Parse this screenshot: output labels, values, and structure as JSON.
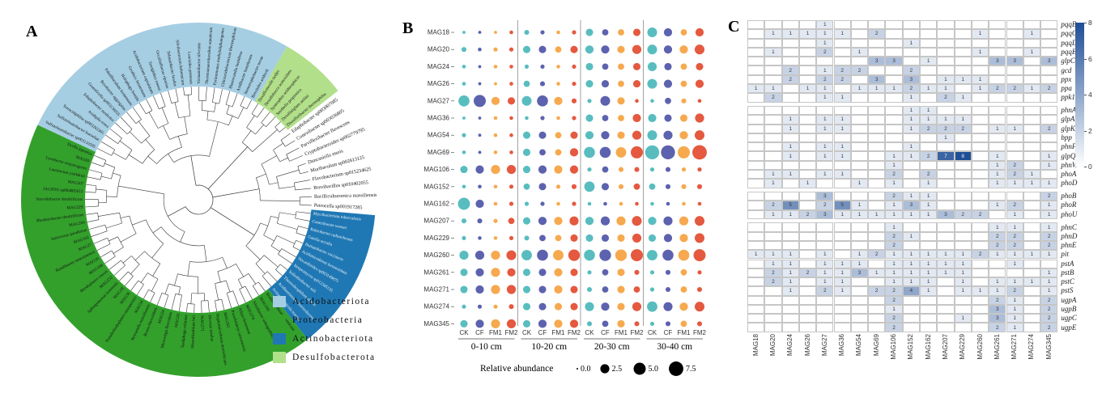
{
  "panel_a": {
    "label": "A",
    "legend": [
      {
        "name": "Acidobacteriota",
        "color": "#a6cee3"
      },
      {
        "name": "Proteobacteria",
        "color": "#33a02c"
      },
      {
        "name": "Actinobacteriota",
        "color": "#1f78b4"
      },
      {
        "name": "Desulfobacterota",
        "color": "#b2df8a"
      }
    ],
    "sectors": [
      {
        "name": "Acidobacteriota",
        "color": "#a6cee3",
        "start": -65,
        "end": 30,
        "label_color": "#111111",
        "tips": [
          "Sulfotelmatobacter sp003133595",
          "Sulfotelmatobacter kueseliae",
          "Terracidiphilus sp003265365",
          "Acidipila rosea",
          "Edaphobacter modestus",
          "Granulicella sp003136055",
          "Bryobacter aggregatus",
          "Paludibaculum fermentans",
          "Holophaga foetida",
          "Geothrix fermentans",
          "Acidobacterium capsulatum",
          "Terriglobus roseus",
          "Occallatibacter riparius",
          "Telmatobacter bradus",
          "Silvibacterium bohemicum",
          "Luteitalea pratensis",
          "Vicinamibacter silvestris",
          "Thermoanaerobaculum aquaticum",
          "Pyrinomonas methylaliphatogenes",
          "Chloracidobacterium thermophilum",
          "Blastocatella fastidiosa",
          "Aridibacter famidurans",
          "Stenotrophobacter terrae",
          "Brevitalea aridisoli"
        ]
      },
      {
        "name": "Desulfobacterota",
        "color": "#b2df8a",
        "start": 30,
        "end": 52,
        "label_color": "#111111",
        "tips": [
          "Desulfomonile tiedjei",
          "Desulfobacca acetoxidans",
          "Syntrophus aciditrophicus",
          "Smithella propionica",
          "Desulfatiglans anilini",
          "Dissulfuribacter thermophilus"
        ]
      },
      {
        "name": "",
        "color": "none",
        "start": 52,
        "end": 95,
        "label_color": "#111111",
        "tips": [
          "Edaphobacter sp003007085",
          "Conexibacter sp003036805",
          "Parviflexibacter flavescens",
          "Cryptobacteroides sp002779795",
          "Duncaniella muris",
          "Muribaculum sp002613125",
          "Flavobacterium sp015234625",
          "Brevibacillus sp010402055",
          "Bacilliculturomica massiliensis",
          "Petrocella sp001917285"
        ]
      },
      {
        "name": "Actinobacteriota",
        "color": "#1f78b4",
        "start": 95,
        "end": 142,
        "label_color": "#f2f6fa",
        "tips": [
          "Mycobacterium tuberculosis",
          "Conexibacter woesei",
          "Rubrobacter radiotolerans",
          "Gaiella occulta",
          "Ilumatobacter coccineus",
          "Acidimicrobium ferrooxidans",
          "Nocardioides sp003149875",
          "Streptomyces sp012345135",
          "Solirubrobacter soli",
          "Thermoleophilum album",
          "Aciditerrimonas ferrireducens",
          "Actinomarinicola tropica"
        ]
      },
      {
        "name": "Proteobacteria",
        "color": "#33a02c",
        "start": 142,
        "end": 295,
        "label_color": "#111111",
        "tips": [
          "Bradyrhizobium japonicum",
          "MAG345",
          "Nitrobacter winogradskyi",
          "MAG274",
          "Afipia broomeae",
          "Pseudolabrys taiwanensis",
          "MAG261",
          "Hyphomicrobium denitrificans",
          "Devosia insulae",
          "MAG271",
          "Mesorhizobium loti",
          "Tardiphaga robiniae",
          "MAG26",
          "Microvirga flocculans",
          "MAG24",
          "Bosea thiooxidans",
          "Reyranella massiliensis",
          "MAG54",
          "Pseudorhodoplanes sinuspersici",
          "MAG36",
          "MAG18",
          "Sphingomonas koreensis",
          "MAG152",
          "Rhodoplanes roseus",
          "MAG106",
          "MAG20",
          "Ramlibacter tataouinensis",
          "MAG27",
          "MAG162",
          "Variovorax paradoxus",
          "MAG260",
          "Rhodanobacter denitrificans",
          "MAG229",
          "Steroidobacter denitrificans",
          "JACPF01 sp004805615",
          "MAG207",
          "Luteimonas yindakuii",
          "Lysobacter enzymogenes",
          "MAG69",
          "Dyella japonica"
        ]
      }
    ]
  },
  "panel_b": {
    "label": "B"
  },
  "panel_c": {
    "label": "C"
  },
  "chart_data": [
    {
      "type": "scatter",
      "title": "",
      "rows": [
        "MAG18",
        "MAG20",
        "MAG24",
        "MAG26",
        "MAG27",
        "MAG36",
        "MAG54",
        "MAG69",
        "MAG106",
        "MAG152",
        "MAG162",
        "MAG207",
        "MAG229",
        "MAG260",
        "MAG261",
        "MAG271",
        "MAG274",
        "MAG345"
      ],
      "facets": [
        "0-10 cm",
        "10-20 cm",
        "20-30 cm",
        "30-40 cm"
      ],
      "x_categories": [
        "CK",
        "CF",
        "FM1",
        "FM2"
      ],
      "series_colors": {
        "CK": "#59bdbf",
        "CF": "#5d62ae",
        "FM1": "#f6a94e",
        "FM2": "#e4593f"
      },
      "size_legend": {
        "label": "Relative abundance",
        "values": [
          "0.0",
          "2.5",
          "5.0",
          "7.5"
        ]
      },
      "ylim": [
        0,
        7.5
      ],
      "values": {
        "MAG18": [
          0.1,
          0.1,
          0.1,
          0.2,
          0.5,
          0.3,
          0.2,
          0.3,
          1.5,
          1.0,
          1.0,
          1.5,
          3.0,
          2.0,
          1.0,
          2.0
        ],
        "MAG20": [
          0.5,
          0.2,
          0.3,
          0.3,
          1.5,
          1.5,
          1.0,
          1.5,
          2.0,
          2.0,
          1.5,
          2.5,
          3.0,
          2.0,
          2.0,
          3.0
        ],
        "MAG24": [
          0.2,
          0.1,
          0.2,
          0.2,
          0.3,
          0.3,
          0.2,
          0.3,
          1.5,
          1.0,
          1.0,
          1.5,
          2.5,
          1.5,
          1.0,
          1.5
        ],
        "MAG26": [
          0.2,
          0.1,
          0.1,
          0.2,
          1.0,
          0.5,
          0.2,
          0.3,
          1.5,
          1.5,
          1.0,
          1.5,
          3.0,
          2.0,
          1.0,
          2.0
        ],
        "MAG27": [
          4.0,
          5.0,
          2.0,
          1.5,
          3.0,
          4.0,
          2.0,
          0.5,
          0.3,
          3.0,
          1.5,
          0.2,
          0.2,
          1.0,
          0.5,
          0.2
        ],
        "MAG36": [
          0.1,
          0.1,
          0.2,
          0.2,
          0.2,
          0.3,
          0.2,
          0.3,
          1.5,
          1.0,
          1.0,
          2.0,
          2.0,
          1.5,
          1.5,
          2.5
        ],
        "MAG54": [
          0.3,
          0.1,
          0.2,
          0.2,
          1.5,
          1.5,
          1.0,
          1.5,
          2.0,
          2.0,
          1.5,
          2.5,
          3.0,
          2.5,
          2.0,
          3.0
        ],
        "MAG69": [
          0.2,
          0.1,
          0.2,
          0.2,
          1.5,
          1.0,
          1.0,
          2.0,
          4.0,
          4.0,
          3.5,
          5.0,
          7.0,
          7.0,
          5.0,
          7.5
        ],
        "MAG106": [
          1.5,
          2.0,
          2.5,
          2.5,
          1.5,
          2.0,
          2.0,
          2.0,
          0.3,
          1.0,
          0.5,
          0.5,
          0.3,
          0.5,
          0.3,
          0.3
        ],
        "MAG152": [
          0.2,
          0.2,
          0.2,
          0.3,
          1.0,
          1.5,
          0.3,
          0.5,
          3.5,
          1.5,
          0.5,
          1.0,
          1.0,
          0.5,
          0.5,
          0.5
        ],
        "MAG162": [
          5.0,
          2.0,
          0.2,
          0.3,
          0.3,
          0.3,
          0.2,
          0.3,
          0.2,
          0.2,
          0.2,
          0.2,
          0.2,
          0.2,
          0.2,
          0.2
        ],
        "MAG207": [
          0.5,
          0.5,
          0.3,
          1.0,
          1.5,
          2.0,
          2.0,
          2.5,
          2.0,
          2.5,
          2.5,
          3.0,
          2.0,
          2.5,
          2.5,
          3.0
        ],
        "MAG229": [
          0.3,
          0.2,
          0.2,
          0.3,
          0.5,
          1.0,
          1.0,
          1.5,
          1.5,
          1.5,
          1.5,
          2.5,
          1.5,
          2.0,
          2.0,
          3.0
        ],
        "MAG260": [
          2.5,
          2.5,
          2.5,
          3.0,
          3.5,
          4.0,
          3.5,
          4.5,
          4.0,
          4.5,
          4.5,
          5.0,
          3.5,
          4.0,
          4.0,
          5.0
        ],
        "MAG261": [
          1.5,
          2.0,
          2.5,
          2.0,
          1.5,
          1.5,
          2.0,
          1.5,
          0.3,
          1.0,
          1.5,
          0.5,
          0.3,
          0.5,
          1.0,
          0.3
        ],
        "MAG271": [
          1.5,
          2.0,
          2.5,
          2.5,
          1.5,
          1.5,
          2.0,
          1.5,
          0.5,
          1.0,
          1.5,
          1.0,
          0.3,
          0.5,
          1.0,
          0.5
        ],
        "MAG274": [
          0.3,
          0.3,
          0.3,
          0.5,
          1.5,
          1.5,
          1.5,
          1.5,
          2.5,
          2.0,
          1.5,
          2.5,
          3.5,
          2.5,
          2.0,
          3.0
        ],
        "MAG345": [
          1.5,
          2.0,
          2.5,
          2.5,
          1.5,
          2.0,
          2.0,
          2.0,
          0.5,
          1.0,
          1.5,
          0.5,
          0.3,
          0.5,
          1.0,
          0.5
        ]
      }
    },
    {
      "type": "heatmap",
      "columns": [
        "MAG18",
        "MAG20",
        "MAG24",
        "MAG26",
        "MAG27",
        "MAG36",
        "MAG54",
        "MAG69",
        "MAG106",
        "MAG152",
        "MAG162",
        "MAG207",
        "MAG229",
        "MAG260",
        "MAG261",
        "MAG271",
        "MAG274",
        "MAG345"
      ],
      "row_groups": [
        [
          "pqqB",
          "pqqC",
          "pqqD",
          "pqqE",
          "glpC",
          "gcd",
          "ppx",
          "ppa",
          "ppk1"
        ],
        [
          "phnA",
          "glpA",
          "glpK",
          "bpp",
          "phnP",
          "glpQ",
          "phnW",
          "phoA",
          "phoD"
        ],
        [
          "phoB",
          "phoR",
          "phoU"
        ],
        [
          "phnC",
          "phnD",
          "phnE",
          "pit",
          "pstA",
          "pstB",
          "pstC",
          "pstS",
          "ugpA",
          "ugpB",
          "ugpC",
          "ugpE"
        ]
      ],
      "colorbar": {
        "min": 0,
        "max": 8,
        "ticks": [
          8,
          6,
          4,
          2,
          0
        ],
        "color_high": "#1f4e96",
        "color_low": "#ffffff"
      },
      "values": {
        "pqqB": {
          "MAG27": 1
        },
        "pqqC": {
          "MAG20": 1,
          "MAG24": 1,
          "MAG26": 1,
          "MAG27": 1,
          "MAG36": 1,
          "MAG69": 2,
          "MAG260": 1,
          "MAG274": 1
        },
        "pqqD": {
          "MAG27": 1,
          "MAG152": 1
        },
        "pqqE": {
          "MAG20": 1,
          "MAG27": 2,
          "MAG54": 1,
          "MAG260": 1,
          "MAG274": 1
        },
        "glpC": {
          "MAG69": 3,
          "MAG106": 3,
          "MAG162": 1,
          "MAG261": 3,
          "MAG271": 3,
          "MAG345": 3
        },
        "gcd": {
          "MAG24": 2,
          "MAG27": 1,
          "MAG36": 2,
          "MAG54": 2,
          "MAG152": 2
        },
        "ppx": {
          "MAG24": 2,
          "MAG27": 2,
          "MAG36": 2,
          "MAG69": 3,
          "MAG152": 3,
          "MAG207": 1,
          "MAG229": 1,
          "MAG260": 1
        },
        "ppa": {
          "MAG18": 1,
          "MAG20": 1,
          "MAG26": 1,
          "MAG27": 1,
          "MAG54": 1,
          "MAG69": 1,
          "MAG106": 1,
          "MAG152": 2,
          "MAG162": 1,
          "MAG207": 1,
          "MAG260": 1,
          "MAG261": 2,
          "MAG271": 2,
          "MAG274": 1,
          "MAG345": 2
        },
        "ppk1": {
          "MAG20": 2,
          "MAG27": 1,
          "MAG36": 1,
          "MAG152": 1,
          "MAG207": 2,
          "MAG229": 1
        },
        "phnA": {
          "MAG152": 1,
          "MAG162": 1
        },
        "glpA": {
          "MAG24": 1,
          "MAG27": 1,
          "MAG36": 1,
          "MAG152": 1,
          "MAG162": 1,
          "MAG207": 1,
          "MAG229": 1
        },
        "glpK": {
          "MAG24": 1,
          "MAG27": 1,
          "MAG36": 1,
          "MAG152": 1,
          "MAG162": 2,
          "MAG207": 2,
          "MAG229": 2,
          "MAG261": 1,
          "MAG271": 1,
          "MAG345": 2
        },
        "bpp": {
          "MAG207": 1
        },
        "phnP": {
          "MAG24": 1,
          "MAG27": 1,
          "MAG36": 1,
          "MAG152": 1
        },
        "glpQ": {
          "MAG24": 1,
          "MAG27": 1,
          "MAG36": 1,
          "MAG106": 1,
          "MAG152": 1,
          "MAG162": 2,
          "MAG207": 7,
          "MAG229": 8,
          "MAG261": 1,
          "MAG345": 1
        },
        "phnW": {
          "MAG106": 1,
          "MAG261": 1,
          "MAG271": 2,
          "MAG345": 1
        },
        "phoA": {
          "MAG20": 1,
          "MAG24": 1,
          "MAG27": 1,
          "MAG36": 1,
          "MAG106": 2,
          "MAG162": 2,
          "MAG261": 1,
          "MAG271": 2,
          "MAG274": 1
        },
        "phoD": {
          "MAG20": 1,
          "MAG26": 1,
          "MAG54": 1,
          "MAG106": 1,
          "MAG162": 1,
          "MAG261": 1,
          "MAG271": 1,
          "MAG274": 1,
          "MAG345": 1
        },
        "phoB": {
          "MAG27": 3,
          "MAG106": 2,
          "MAG152": 1,
          "MAG162": 1,
          "MAG345": 2
        },
        "phoR": {
          "MAG20": 2,
          "MAG24": 5,
          "MAG27": 2,
          "MAG36": 5,
          "MAG54": 1,
          "MAG106": 1,
          "MAG152": 3,
          "MAG162": 1,
          "MAG261": 1,
          "MAG271": 2,
          "MAG345": 1
        },
        "phoU": {
          "MAG20": 1,
          "MAG24": 1,
          "MAG26": 2,
          "MAG27": 3,
          "MAG36": 1,
          "MAG54": 1,
          "MAG69": 1,
          "MAG106": 1,
          "MAG152": 1,
          "MAG162": 1,
          "MAG207": 3,
          "MAG229": 2,
          "MAG260": 2,
          "MAG271": 1,
          "MAG345": 1
        },
        "phnC": {
          "MAG106": 1,
          "MAG261": 1,
          "MAG271": 1,
          "MAG345": 1
        },
        "phnD": {
          "MAG106": 2,
          "MAG152": 1,
          "MAG261": 2,
          "MAG271": 2,
          "MAG345": 2
        },
        "phnE": {
          "MAG106": 2,
          "MAG261": 2,
          "MAG271": 2,
          "MAG345": 2
        },
        "pit": {
          "MAG18": 1,
          "MAG20": 1,
          "MAG24": 1,
          "MAG27": 1,
          "MAG54": 1,
          "MAG69": 2,
          "MAG106": 1,
          "MAG152": 1,
          "MAG162": 1,
          "MAG207": 1,
          "MAG229": 1,
          "MAG260": 2,
          "MAG261": 1,
          "MAG271": 1,
          "MAG274": 1,
          "MAG345": 1
        },
        "pstA": {
          "MAG20": 1,
          "MAG24": 1,
          "MAG27": 1,
          "MAG36": 1,
          "MAG54": 1,
          "MAG106": 1,
          "MAG152": 1,
          "MAG162": 1,
          "MAG207": 1,
          "MAG229": 1,
          "MAG271": 1
        },
        "pstB": {
          "MAG20": 2,
          "MAG24": 1,
          "MAG26": 2,
          "MAG27": 1,
          "MAG36": 1,
          "MAG54": 3,
          "MAG69": 1,
          "MAG106": 1,
          "MAG152": 1,
          "MAG162": 1,
          "MAG207": 1,
          "MAG229": 1,
          "MAG345": 1
        },
        "pstC": {
          "MAG20": 2,
          "MAG24": 1,
          "MAG27": 1,
          "MAG36": 1,
          "MAG106": 1,
          "MAG152": 1,
          "MAG162": 1,
          "MAG229": 1,
          "MAG261": 1,
          "MAG271": 1,
          "MAG274": 1,
          "MAG345": 1
        },
        "pstS": {
          "MAG24": 1,
          "MAG27": 2,
          "MAG36": 1,
          "MAG69": 2,
          "MAG106": 2,
          "MAG152": 4,
          "MAG162": 1,
          "MAG229": 1,
          "MAG260": 1,
          "MAG261": 1,
          "MAG271": 2,
          "MAG345": 1
        },
        "ugpA": {
          "MAG106": 2,
          "MAG261": 2,
          "MAG271": 1,
          "MAG345": 2
        },
        "ugpB": {
          "MAG106": 1,
          "MAG261": 3,
          "MAG271": 1,
          "MAG345": 2
        },
        "ugpC": {
          "MAG106": 2,
          "MAG229": 1,
          "MAG261": 3,
          "MAG271": 1,
          "MAG345": 2
        },
        "ugpE": {
          "MAG106": 2,
          "MAG261": 2,
          "MAG271": 1,
          "MAG345": 2
        }
      }
    }
  ]
}
